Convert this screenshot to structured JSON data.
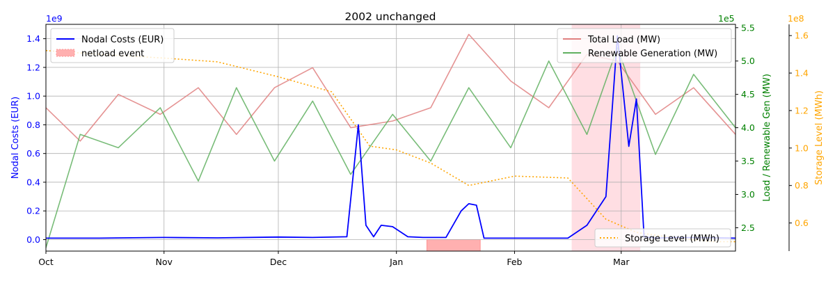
{
  "chart_data": {
    "type": "line",
    "title": "2002 unchanged",
    "x_ticks": [
      "Oct",
      "Nov",
      "Dec",
      "Jan",
      "Feb",
      "Mar"
    ],
    "x_range": [
      "2001-10-01",
      "2002-03-31"
    ],
    "axes": {
      "left": {
        "label": "Nodal Costs (EUR)",
        "multiplier": "1e9",
        "range": [
          -0.08,
          1.5
        ],
        "ticks": [
          "0.0",
          "0.2",
          "0.4",
          "0.6",
          "0.8",
          "1.0",
          "1.2",
          "1.4"
        ],
        "color": "#0000ff"
      },
      "right1": {
        "label": "Load / Renewable Gen (MW)",
        "multiplier": "1e5",
        "range": [
          2.15,
          5.55
        ],
        "ticks": [
          "2.5",
          "3.0",
          "3.5",
          "4.0",
          "4.5",
          "5.0",
          "5.5"
        ],
        "color": "#008000"
      },
      "right2": {
        "label": "Storage Level (MWh)",
        "multiplier": "1e8",
        "range": [
          0.45,
          1.66
        ],
        "ticks": [
          "0.6",
          "0.8",
          "1.0",
          "1.2",
          "1.4",
          "1.6"
        ],
        "color": "#ffa500"
      }
    },
    "grid": true,
    "legends": {
      "upper_left": [
        "Nodal Costs (EUR)",
        "netload event"
      ],
      "upper_right": [
        "Total Load (MW)",
        "Renewable Generation (MW)"
      ],
      "lower_right": [
        "Storage Level (MWh)"
      ]
    },
    "netload_event": {
      "start": "2002-01-09",
      "end": "2002-01-23"
    },
    "highlight_span": {
      "start": "2002-02-16",
      "end": "2002-03-06"
    },
    "series": [
      {
        "name": "Nodal Costs (EUR)",
        "axis": "left",
        "color": "#0000ff",
        "x": [
          "2001-10-01",
          "2001-10-15",
          "2001-11-01",
          "2001-11-15",
          "2001-12-01",
          "2001-12-10",
          "2001-12-19",
          "2001-12-22",
          "2001-12-24",
          "2001-12-26",
          "2001-12-28",
          "2001-12-31",
          "2002-01-04",
          "2002-01-08",
          "2002-01-14",
          "2002-01-18",
          "2002-01-20",
          "2002-01-22",
          "2002-01-24",
          "2002-01-30",
          "2002-02-05",
          "2002-02-10",
          "2002-02-15",
          "2002-02-20",
          "2002-02-25",
          "2002-02-28",
          "2002-03-03",
          "2002-03-05",
          "2002-03-07",
          "2002-03-10",
          "2002-03-15",
          "2002-04-01"
        ],
        "y": [
          0.01,
          0.01,
          0.015,
          0.012,
          0.018,
          0.015,
          0.02,
          0.8,
          0.1,
          0.02,
          0.1,
          0.09,
          0.02,
          0.015,
          0.015,
          0.2,
          0.25,
          0.24,
          0.01,
          0.01,
          0.01,
          0.01,
          0.01,
          0.1,
          0.3,
          1.42,
          0.65,
          0.98,
          0.02,
          0.01,
          0.015,
          0.01
        ]
      },
      {
        "name": "Total Load (MW)",
        "axis": "right1",
        "color": "#e08080",
        "x": [
          "2001-10-01",
          "2001-10-10",
          "2001-10-20",
          "2001-10-31",
          "2001-11-10",
          "2001-11-20",
          "2001-11-30",
          "2001-12-10",
          "2001-12-20",
          "2001-12-31",
          "2002-01-10",
          "2002-01-20",
          "2002-01-31",
          "2002-02-10",
          "2002-02-20",
          "2002-02-28",
          "2002-03-10",
          "2002-03-20",
          "2002-03-31"
        ],
        "y": [
          4.3,
          3.8,
          4.5,
          4.2,
          4.6,
          3.9,
          4.6,
          4.9,
          4.0,
          4.1,
          4.3,
          5.4,
          4.7,
          4.3,
          5.1,
          5.0,
          4.2,
          4.6,
          3.9
        ]
      },
      {
        "name": "Renewable Generation (MW)",
        "axis": "right1",
        "color": "#60b060",
        "x": [
          "2001-10-01",
          "2001-10-10",
          "2001-10-20",
          "2001-10-31",
          "2001-11-10",
          "2001-11-20",
          "2001-11-30",
          "2001-12-10",
          "2001-12-20",
          "2001-12-31",
          "2002-01-10",
          "2002-01-20",
          "2002-01-31",
          "2002-02-10",
          "2002-02-20",
          "2002-02-28",
          "2002-03-10",
          "2002-03-20",
          "2002-03-31"
        ],
        "y": [
          2.2,
          3.9,
          3.7,
          4.3,
          3.2,
          4.6,
          3.5,
          4.4,
          3.3,
          4.2,
          3.5,
          4.6,
          3.7,
          5.0,
          3.9,
          5.2,
          3.6,
          4.8,
          4.0
        ]
      },
      {
        "name": "Storage Level (MWh)",
        "axis": "right2",
        "color": "#ffa500",
        "x": [
          "2001-10-01",
          "2001-10-15",
          "2001-11-01",
          "2001-11-15",
          "2001-12-01",
          "2001-12-15",
          "2001-12-25",
          "2002-01-01",
          "2002-01-10",
          "2002-01-20",
          "2002-02-01",
          "2002-02-15",
          "2002-02-25",
          "2002-03-05",
          "2002-03-15",
          "2002-03-25",
          "2002-03-31"
        ],
        "y": [
          1.52,
          1.5,
          1.48,
          1.46,
          1.38,
          1.3,
          1.01,
          0.99,
          0.92,
          0.8,
          0.85,
          0.84,
          0.62,
          0.55,
          0.52,
          0.5,
          0.5
        ]
      }
    ]
  }
}
